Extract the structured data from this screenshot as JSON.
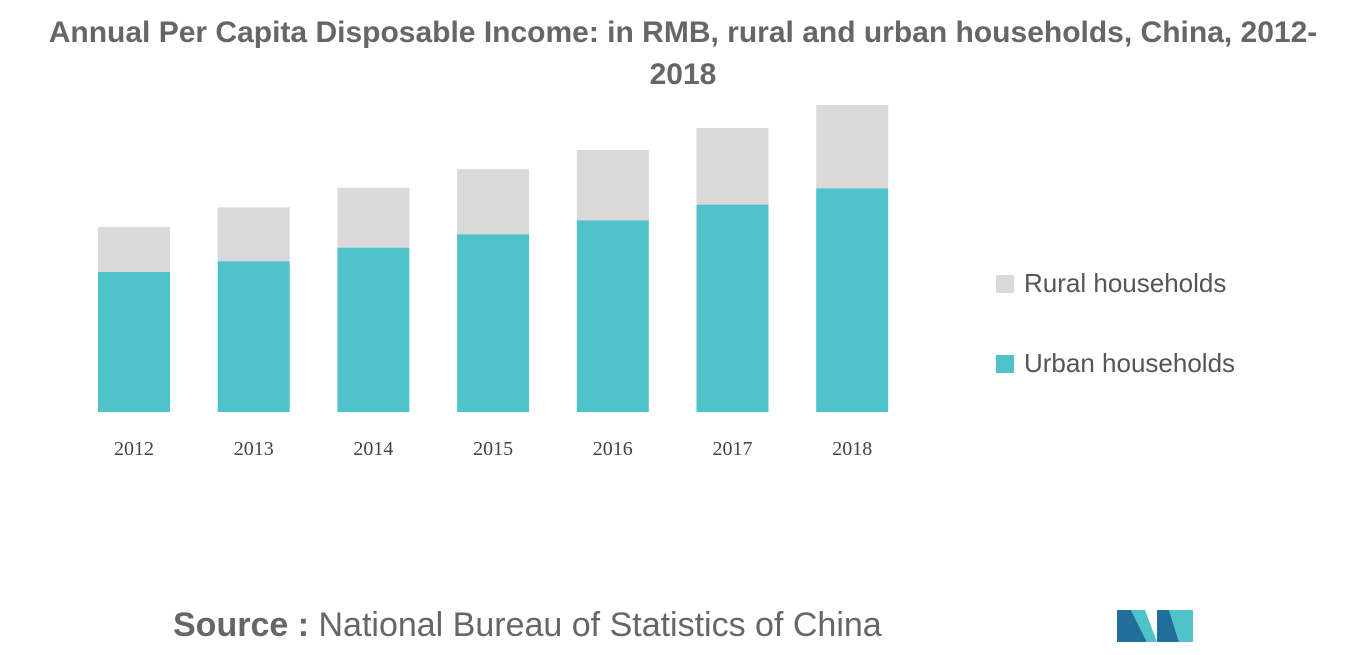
{
  "title": {
    "line1": "Annual Per Capita Disposable Income: in RMB, rural and urban households, China, 2012-",
    "line2": "2018"
  },
  "colors": {
    "rural": "#dadada",
    "urban": "#4fc3c9",
    "text": "#666666",
    "logo_dark": "#1f6f9a",
    "logo_teal": "#4fc3c9"
  },
  "chart_data": {
    "type": "bar",
    "stacked": true,
    "categories": [
      "2012",
      "2013",
      "2014",
      "2015",
      "2016",
      "2017",
      "2018"
    ],
    "series": [
      {
        "name": "Urban households",
        "color": "#4fc3c9",
        "values": [
          24565,
          26467,
          28844,
          31195,
          33616,
          36396,
          39251
        ]
      },
      {
        "name": "Rural households",
        "color": "#dadada",
        "values": [
          7917,
          9430,
          10489,
          11422,
          12363,
          13432,
          14617
        ]
      }
    ],
    "ylim": [
      0,
      53868
    ],
    "grid": false,
    "legend": "right"
  },
  "legend": {
    "items": [
      {
        "label": "Rural households",
        "color": "#dadada"
      },
      {
        "label": "Urban households",
        "color": "#4fc3c9"
      }
    ]
  },
  "source": {
    "prefix": "Source :",
    "text": " National Bureau of Statistics of China"
  },
  "logo": {
    "icon": "mordor-intelligence-logo"
  }
}
